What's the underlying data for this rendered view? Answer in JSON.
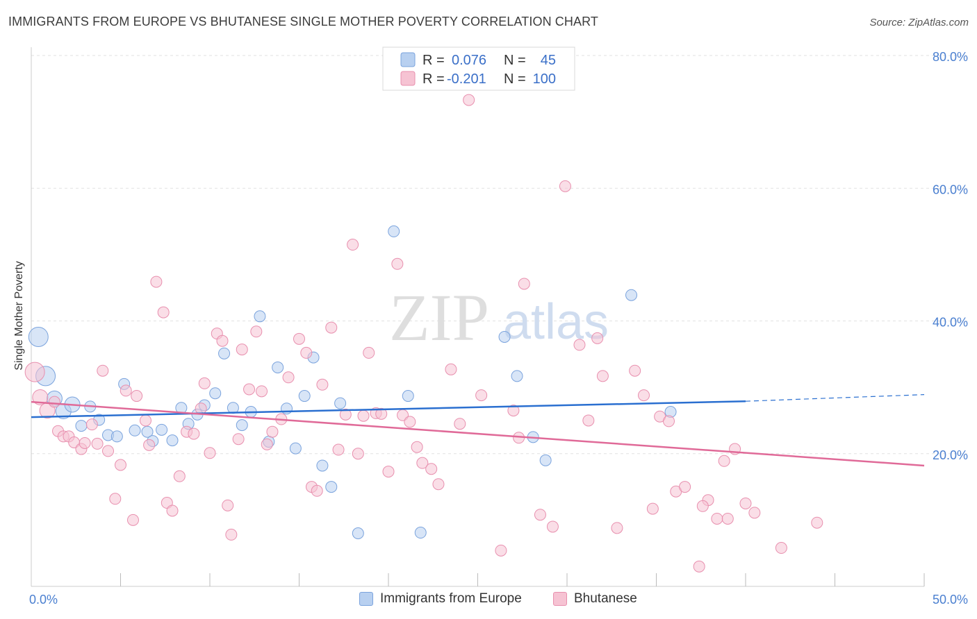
{
  "header": {
    "title": "IMMIGRANTS FROM EUROPE VS BHUTANESE SINGLE MOTHER POVERTY CORRELATION CHART",
    "source": "Source: ZipAtlas.com"
  },
  "watermark": {
    "zip": "ZIP",
    "atlas": "atlas"
  },
  "colors": {
    "blue_fill": "#b8d0f0",
    "blue_stroke": "#7aa3dd",
    "blue_line": "#2a6fd0",
    "pink_fill": "#f6c3d3",
    "pink_stroke": "#e88fae",
    "pink_line": "#e06a98",
    "grid": "#e2e2e2",
    "tick_text": "#4a7fd0"
  },
  "legend": {
    "rows": [
      {
        "r_label": "R =",
        "r_value": "0.076",
        "n_label": "N =",
        "n_value": "45"
      },
      {
        "r_label": "R =",
        "r_value": "-0.201",
        "n_label": "N =",
        "n_value": "100"
      }
    ]
  },
  "chart_data": {
    "type": "scatter",
    "title": "IMMIGRANTS FROM EUROPE VS BHUTANESE SINGLE MOTHER POVERTY CORRELATION CHART",
    "xlabel": "",
    "ylabel": "Single Mother Poverty",
    "xlim": [
      0,
      50
    ],
    "ylim": [
      0,
      80
    ],
    "x_tick_labels": [
      {
        "value": 0,
        "label": "0.0%"
      },
      {
        "value": 50,
        "label": "50.0%"
      }
    ],
    "y_tick_labels": [
      {
        "value": 20,
        "label": "20.0%"
      },
      {
        "value": 40,
        "label": "40.0%"
      },
      {
        "value": 60,
        "label": "60.0%"
      },
      {
        "value": 80,
        "label": "80.0%"
      }
    ],
    "legend_placement": "top-center",
    "grid": true,
    "series": [
      {
        "name": "Immigrants from Europe",
        "color": "#7aa3dd",
        "r": 0.076,
        "n": 45,
        "trend": {
          "x0": 0,
          "y0": 25.5,
          "x1": 40,
          "y1": 27.9,
          "dashed_to_x": 50,
          "dashed_to_y": 28.9
        },
        "points": [
          {
            "x": 0.4,
            "y": 37.6,
            "s": 3
          },
          {
            "x": 0.8,
            "y": 31.7,
            "s": 3
          },
          {
            "x": 1.3,
            "y": 28.3,
            "s": 2
          },
          {
            "x": 1.8,
            "y": 26.4,
            "s": 2
          },
          {
            "x": 2.3,
            "y": 27.4,
            "s": 2
          },
          {
            "x": 2.8,
            "y": 24.2,
            "s": 1
          },
          {
            "x": 3.3,
            "y": 27.1,
            "s": 1
          },
          {
            "x": 3.8,
            "y": 25.1,
            "s": 1
          },
          {
            "x": 4.3,
            "y": 22.8,
            "s": 1
          },
          {
            "x": 4.8,
            "y": 22.6,
            "s": 1
          },
          {
            "x": 5.2,
            "y": 30.5,
            "s": 1
          },
          {
            "x": 5.8,
            "y": 23.5,
            "s": 1
          },
          {
            "x": 6.5,
            "y": 23.3,
            "s": 1
          },
          {
            "x": 6.8,
            "y": 21.9,
            "s": 1
          },
          {
            "x": 7.3,
            "y": 23.6,
            "s": 1
          },
          {
            "x": 7.9,
            "y": 22.0,
            "s": 1
          },
          {
            "x": 8.4,
            "y": 26.9,
            "s": 1
          },
          {
            "x": 8.8,
            "y": 24.5,
            "s": 1
          },
          {
            "x": 9.3,
            "y": 25.9,
            "s": 1
          },
          {
            "x": 9.7,
            "y": 27.3,
            "s": 1
          },
          {
            "x": 10.3,
            "y": 29.1,
            "s": 1
          },
          {
            "x": 10.8,
            "y": 35.1,
            "s": 1
          },
          {
            "x": 11.3,
            "y": 26.9,
            "s": 1
          },
          {
            "x": 11.8,
            "y": 24.3,
            "s": 1
          },
          {
            "x": 12.3,
            "y": 26.3,
            "s": 1
          },
          {
            "x": 12.8,
            "y": 40.7,
            "s": 1
          },
          {
            "x": 13.3,
            "y": 21.8,
            "s": 1
          },
          {
            "x": 13.8,
            "y": 33.0,
            "s": 1
          },
          {
            "x": 14.3,
            "y": 26.8,
            "s": 1
          },
          {
            "x": 14.8,
            "y": 20.8,
            "s": 1
          },
          {
            "x": 15.3,
            "y": 28.7,
            "s": 1
          },
          {
            "x": 15.8,
            "y": 34.5,
            "s": 1
          },
          {
            "x": 16.3,
            "y": 18.2,
            "s": 1
          },
          {
            "x": 16.8,
            "y": 15.0,
            "s": 1
          },
          {
            "x": 17.3,
            "y": 27.6,
            "s": 1
          },
          {
            "x": 18.3,
            "y": 8.0,
            "s": 1
          },
          {
            "x": 20.3,
            "y": 53.5,
            "s": 1
          },
          {
            "x": 21.1,
            "y": 28.7,
            "s": 1
          },
          {
            "x": 21.8,
            "y": 8.1,
            "s": 1
          },
          {
            "x": 26.5,
            "y": 37.6,
            "s": 1
          },
          {
            "x": 27.2,
            "y": 31.7,
            "s": 1
          },
          {
            "x": 28.1,
            "y": 22.5,
            "s": 1
          },
          {
            "x": 28.8,
            "y": 19.0,
            "s": 1
          },
          {
            "x": 33.6,
            "y": 43.9,
            "s": 1
          },
          {
            "x": 35.8,
            "y": 26.3,
            "s": 1
          }
        ]
      },
      {
        "name": "Bhutanese",
        "color": "#e88fae",
        "r": -0.201,
        "n": 100,
        "trend": {
          "x0": 0,
          "y0": 27.8,
          "x1": 50,
          "y1": 18.2
        },
        "points": [
          {
            "x": 0.2,
            "y": 32.3,
            "s": 3
          },
          {
            "x": 0.5,
            "y": 28.5,
            "s": 2
          },
          {
            "x": 0.9,
            "y": 26.5,
            "s": 2
          },
          {
            "x": 1.3,
            "y": 27.8,
            "s": 1
          },
          {
            "x": 1.5,
            "y": 23.4,
            "s": 1
          },
          {
            "x": 1.8,
            "y": 22.6,
            "s": 1
          },
          {
            "x": 2.1,
            "y": 22.6,
            "s": 1
          },
          {
            "x": 2.4,
            "y": 21.7,
            "s": 1
          },
          {
            "x": 2.8,
            "y": 20.7,
            "s": 1
          },
          {
            "x": 3.0,
            "y": 21.6,
            "s": 1
          },
          {
            "x": 3.4,
            "y": 24.4,
            "s": 1
          },
          {
            "x": 3.7,
            "y": 21.5,
            "s": 1
          },
          {
            "x": 4.0,
            "y": 32.5,
            "s": 1
          },
          {
            "x": 4.3,
            "y": 20.4,
            "s": 1
          },
          {
            "x": 4.7,
            "y": 13.2,
            "s": 1
          },
          {
            "x": 5.0,
            "y": 18.3,
            "s": 1
          },
          {
            "x": 5.3,
            "y": 29.5,
            "s": 1
          },
          {
            "x": 5.7,
            "y": 10.0,
            "s": 1
          },
          {
            "x": 5.9,
            "y": 28.7,
            "s": 1
          },
          {
            "x": 6.4,
            "y": 25.0,
            "s": 1
          },
          {
            "x": 6.6,
            "y": 21.3,
            "s": 1
          },
          {
            "x": 7.0,
            "y": 45.9,
            "s": 1
          },
          {
            "x": 7.4,
            "y": 41.3,
            "s": 1
          },
          {
            "x": 7.6,
            "y": 12.6,
            "s": 1
          },
          {
            "x": 7.9,
            "y": 11.4,
            "s": 1
          },
          {
            "x": 8.3,
            "y": 16.6,
            "s": 1
          },
          {
            "x": 8.7,
            "y": 23.3,
            "s": 1
          },
          {
            "x": 9.1,
            "y": 23.0,
            "s": 1
          },
          {
            "x": 9.5,
            "y": 26.8,
            "s": 1
          },
          {
            "x": 9.7,
            "y": 30.6,
            "s": 1
          },
          {
            "x": 10.0,
            "y": 20.1,
            "s": 1
          },
          {
            "x": 10.4,
            "y": 38.1,
            "s": 1
          },
          {
            "x": 10.7,
            "y": 37.0,
            "s": 1
          },
          {
            "x": 11.0,
            "y": 12.2,
            "s": 1
          },
          {
            "x": 11.2,
            "y": 7.8,
            "s": 1
          },
          {
            "x": 11.6,
            "y": 22.2,
            "s": 1
          },
          {
            "x": 11.8,
            "y": 35.7,
            "s": 1
          },
          {
            "x": 12.2,
            "y": 29.7,
            "s": 1
          },
          {
            "x": 12.6,
            "y": 38.4,
            "s": 1
          },
          {
            "x": 12.9,
            "y": 29.4,
            "s": 1
          },
          {
            "x": 13.2,
            "y": 21.4,
            "s": 1
          },
          {
            "x": 13.5,
            "y": 23.3,
            "s": 1
          },
          {
            "x": 14.0,
            "y": 25.2,
            "s": 1
          },
          {
            "x": 14.4,
            "y": 31.5,
            "s": 1
          },
          {
            "x": 15.0,
            "y": 37.3,
            "s": 1
          },
          {
            "x": 15.4,
            "y": 35.2,
            "s": 1
          },
          {
            "x": 15.7,
            "y": 15.0,
            "s": 1
          },
          {
            "x": 16.0,
            "y": 14.4,
            "s": 1
          },
          {
            "x": 16.3,
            "y": 30.4,
            "s": 1
          },
          {
            "x": 16.8,
            "y": 39.0,
            "s": 1
          },
          {
            "x": 17.2,
            "y": 20.6,
            "s": 1
          },
          {
            "x": 17.6,
            "y": 25.9,
            "s": 1
          },
          {
            "x": 18.0,
            "y": 51.5,
            "s": 1
          },
          {
            "x": 18.3,
            "y": 20.0,
            "s": 1
          },
          {
            "x": 18.6,
            "y": 25.7,
            "s": 1
          },
          {
            "x": 18.9,
            "y": 35.2,
            "s": 1
          },
          {
            "x": 19.3,
            "y": 26.1,
            "s": 1
          },
          {
            "x": 19.6,
            "y": 26.0,
            "s": 1
          },
          {
            "x": 20.0,
            "y": 17.3,
            "s": 1
          },
          {
            "x": 20.5,
            "y": 48.6,
            "s": 1
          },
          {
            "x": 20.8,
            "y": 25.8,
            "s": 1
          },
          {
            "x": 21.2,
            "y": 24.8,
            "s": 1
          },
          {
            "x": 21.6,
            "y": 21.0,
            "s": 1
          },
          {
            "x": 21.9,
            "y": 18.6,
            "s": 1
          },
          {
            "x": 22.4,
            "y": 17.7,
            "s": 1
          },
          {
            "x": 22.8,
            "y": 15.4,
            "s": 1
          },
          {
            "x": 23.5,
            "y": 32.7,
            "s": 1
          },
          {
            "x": 24.0,
            "y": 24.5,
            "s": 1
          },
          {
            "x": 24.5,
            "y": 73.3,
            "s": 1
          },
          {
            "x": 25.2,
            "y": 28.8,
            "s": 1
          },
          {
            "x": 26.3,
            "y": 5.4,
            "s": 1
          },
          {
            "x": 27.0,
            "y": 26.5,
            "s": 1
          },
          {
            "x": 27.3,
            "y": 22.4,
            "s": 1
          },
          {
            "x": 27.6,
            "y": 45.6,
            "s": 1
          },
          {
            "x": 28.5,
            "y": 10.8,
            "s": 1
          },
          {
            "x": 29.2,
            "y": 9.0,
            "s": 1
          },
          {
            "x": 29.9,
            "y": 60.3,
            "s": 1
          },
          {
            "x": 30.7,
            "y": 36.4,
            "s": 1
          },
          {
            "x": 31.2,
            "y": 25.0,
            "s": 1
          },
          {
            "x": 31.7,
            "y": 37.4,
            "s": 1
          },
          {
            "x": 32.0,
            "y": 31.7,
            "s": 1
          },
          {
            "x": 32.8,
            "y": 8.8,
            "s": 1
          },
          {
            "x": 33.8,
            "y": 32.5,
            "s": 1
          },
          {
            "x": 34.3,
            "y": 28.8,
            "s": 1
          },
          {
            "x": 34.8,
            "y": 11.7,
            "s": 1
          },
          {
            "x": 35.2,
            "y": 25.6,
            "s": 1
          },
          {
            "x": 35.7,
            "y": 24.9,
            "s": 1
          },
          {
            "x": 36.1,
            "y": 14.3,
            "s": 1
          },
          {
            "x": 36.6,
            "y": 15.0,
            "s": 1
          },
          {
            "x": 37.4,
            "y": 3.0,
            "s": 1
          },
          {
            "x": 37.9,
            "y": 13.0,
            "s": 1
          },
          {
            "x": 38.4,
            "y": 10.2,
            "s": 1
          },
          {
            "x": 38.8,
            "y": 18.9,
            "s": 1
          },
          {
            "x": 39.0,
            "y": 10.2,
            "s": 1
          },
          {
            "x": 39.4,
            "y": 20.7,
            "s": 1
          },
          {
            "x": 40.5,
            "y": 11.1,
            "s": 1
          },
          {
            "x": 42.0,
            "y": 5.8,
            "s": 1
          },
          {
            "x": 44.0,
            "y": 9.6,
            "s": 1
          },
          {
            "x": 40.0,
            "y": 12.5,
            "s": 1
          },
          {
            "x": 37.6,
            "y": 12.1,
            "s": 1
          }
        ]
      }
    ]
  },
  "bottom_legend": {
    "items": [
      {
        "label": "Immigrants from Europe"
      },
      {
        "label": "Bhutanese"
      }
    ]
  }
}
